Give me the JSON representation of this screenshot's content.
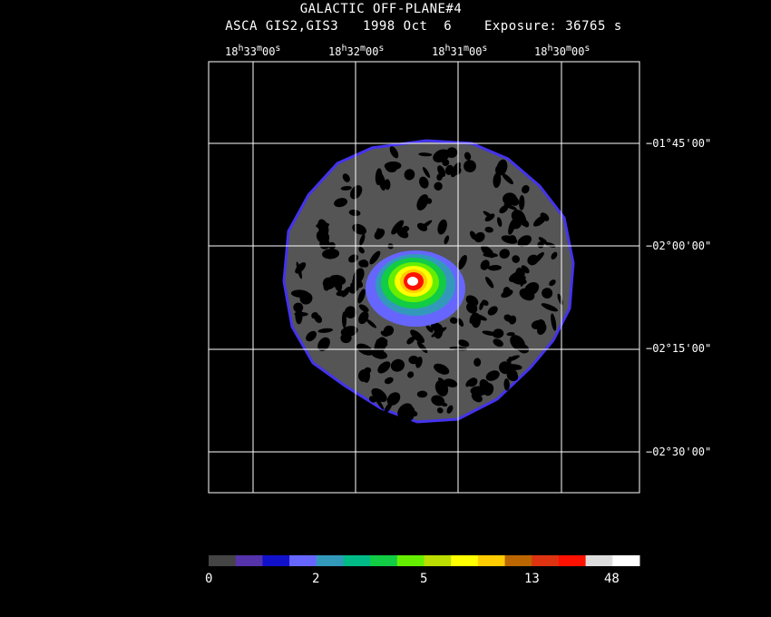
{
  "title_line1": "GALACTIC OFF-PLANE#4",
  "title_line2": "ASCA GIS2,GIS3   1998 Oct  6    Exposure: 36765 s",
  "ra_labels": [
    {
      "h": "18",
      "m": "33",
      "s": "00"
    },
    {
      "h": "18",
      "m": "32",
      "s": "00"
    },
    {
      "h": "18",
      "m": "31",
      "s": "00"
    },
    {
      "h": "18",
      "m": "30",
      "s": "00"
    }
  ],
  "dec_labels": [
    "−01°45'00\"",
    "−02°00'00\"",
    "−02°15'00\"",
    "−02°30'00\""
  ],
  "colorbar": {
    "colors": [
      "#444444",
      "#5533aa",
      "#1111cc",
      "#6666ff",
      "#3399bb",
      "#00bb88",
      "#11cc44",
      "#66ee00",
      "#bbdd00",
      "#ffff00",
      "#ffcc00",
      "#bb6600",
      "#dd3311",
      "#ff1100",
      "#dddddd",
      "#ffffff"
    ],
    "labels": [
      "0",
      "2",
      "5",
      "13",
      "48"
    ]
  },
  "image": {
    "background_color": "#555555",
    "hole_color": "#000000"
  }
}
